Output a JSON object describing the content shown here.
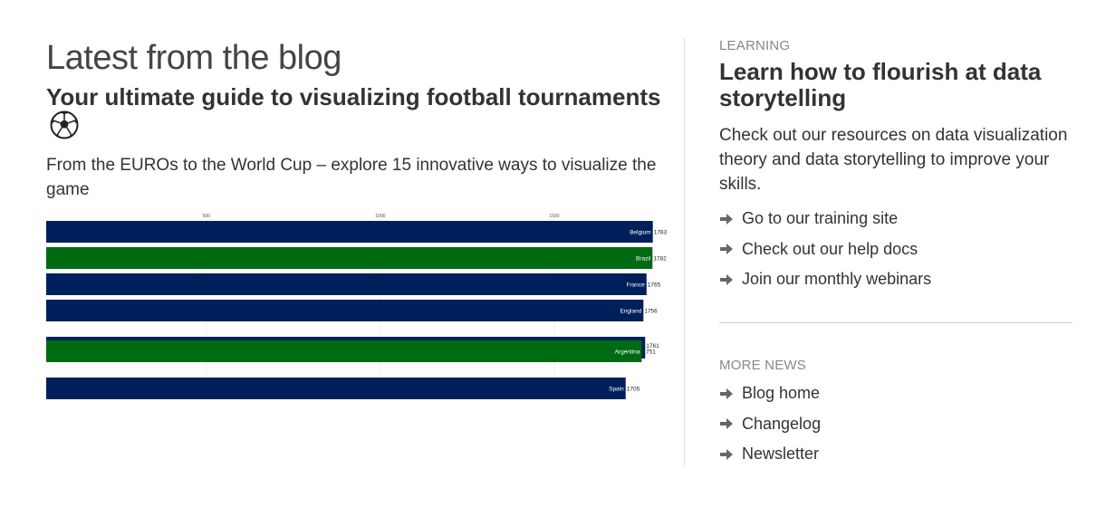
{
  "blog": {
    "section_title": "Latest from the blog",
    "post_title": "Your ultimate guide to visualizing football tournaments",
    "post_icon": "football-icon",
    "post_description": "From the EUROs to the World Cup – explore 15 innovative ways to visualize the game"
  },
  "chart_data": {
    "type": "bar",
    "orientation": "horizontal",
    "x_ticks": [
      "500",
      "1000",
      "1500"
    ],
    "xlim": [
      40,
      1815
    ],
    "categories": [
      "Belgium",
      "Brazil",
      "France",
      "England",
      "Argentina",
      "Spain"
    ],
    "value_labels": [
      "1783",
      "1782",
      "1765",
      "1756",
      "1751",
      "1705"
    ],
    "values": [
      1783,
      1782,
      1765,
      1756,
      1751,
      1705
    ],
    "overlapping_label": "1761",
    "colors": {
      "blue": "#00205b",
      "green": "#006b12"
    },
    "bar_colors": [
      "blue",
      "green",
      "blue",
      "blue",
      "green",
      "blue"
    ]
  },
  "learning": {
    "eyebrow": "LEARNING",
    "title": "Learn how to flourish at data storytelling",
    "description": "Check out our resources on data visualization theory and data storytelling to improve your skills.",
    "links": [
      {
        "label": "Go to our training site",
        "icon": "arrow-right-icon"
      },
      {
        "label": "Check out our help docs",
        "icon": "arrow-right-icon"
      },
      {
        "label": "Join our monthly webinars",
        "icon": "arrow-right-icon"
      }
    ]
  },
  "more_news": {
    "eyebrow": "MORE NEWS",
    "links": [
      {
        "label": "Blog home",
        "icon": "arrow-right-icon"
      },
      {
        "label": "Changelog",
        "icon": "arrow-right-icon"
      },
      {
        "label": "Newsletter",
        "icon": "arrow-right-icon"
      }
    ]
  }
}
